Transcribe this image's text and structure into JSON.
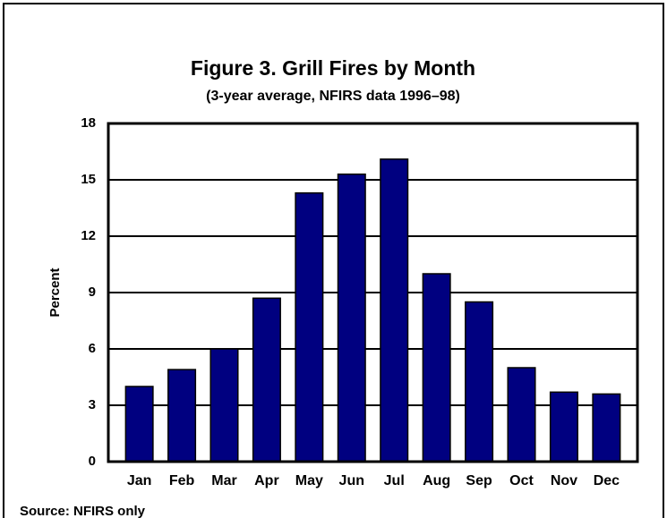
{
  "chart_data": {
    "type": "bar",
    "title": "Figure 3. Grill Fires by Month",
    "subtitle": "(3-year average, NFIRS data 1996–98)",
    "y_label": "Percent",
    "source": "Source:  NFIRS only",
    "categories": [
      "Jan",
      "Feb",
      "Mar",
      "Apr",
      "May",
      "Jun",
      "Jul",
      "Aug",
      "Sep",
      "Oct",
      "Nov",
      "Dec"
    ],
    "values": [
      4.0,
      4.9,
      6.0,
      8.7,
      14.3,
      15.3,
      16.1,
      10.0,
      8.5,
      5.0,
      3.7,
      3.6
    ],
    "color": "#000080",
    "ylim": [
      0,
      18
    ],
    "yticks": [
      0,
      3,
      6,
      9,
      12,
      15,
      18
    ],
    "grid": true
  }
}
